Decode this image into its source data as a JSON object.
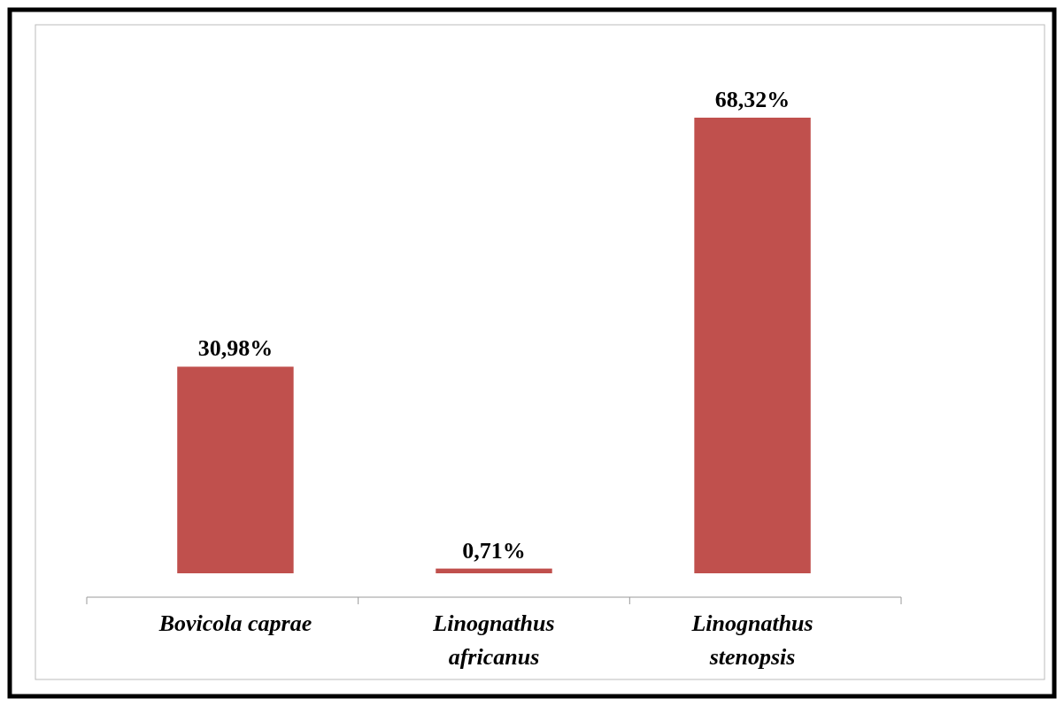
{
  "chart_data": {
    "type": "bar",
    "categories": [
      "Bovicola caprae",
      "Linognathus africanus",
      "Linognathus stenopsis"
    ],
    "values": [
      30.98,
      0.71,
      68.32
    ],
    "value_labels": [
      "30,98%",
      "0,71%",
      "68,32%"
    ],
    "color": "#c0504d"
  }
}
